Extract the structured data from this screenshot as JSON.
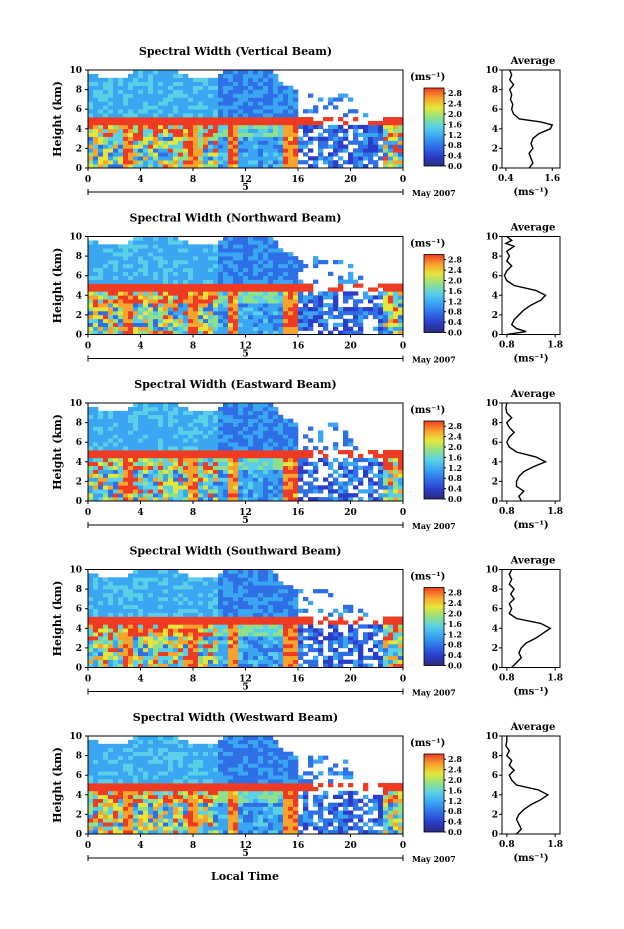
{
  "chart_data": {
    "type": "heatmap",
    "x_label": "Local Time",
    "x_ticks": [
      "0",
      "4",
      "8",
      "12",
      "16",
      "20",
      "0"
    ],
    "x_range": [
      0,
      24
    ],
    "date_label": "5",
    "date_suffix": "May 2007",
    "y_label": "Height (km)",
    "y_ticks": [
      "0",
      "2",
      "4",
      "6",
      "8",
      "10"
    ],
    "y_range": [
      0,
      10
    ],
    "colorbar": {
      "unit": "(ms⁻¹)",
      "ticks": [
        "0.0",
        "0.4",
        "0.8",
        "1.2",
        "1.6",
        "2.0",
        "2.4",
        "2.8"
      ],
      "range": [
        0.0,
        3.0
      ],
      "colors": [
        "#2a2a7a",
        "#2a3cc8",
        "#2f6fe6",
        "#3aa6f2",
        "#5ad0e8",
        "#8fe08a",
        "#e6e63a",
        "#f7a32c",
        "#ef3b23"
      ]
    },
    "avg_title": "Average",
    "avg_unit": "(ms⁻¹)",
    "panels": [
      {
        "title": "Spectral Width (Vertical Beam)",
        "avg_xticks": [
          "0.4",
          "1.6"
        ],
        "avg_xrange": [
          0.3,
          1.8
        ],
        "avg_profile": [
          [
            0,
            1.0
          ],
          [
            0.5,
            1.1
          ],
          [
            1,
            1.05
          ],
          [
            1.5,
            1.0
          ],
          [
            2,
            1.1
          ],
          [
            2.5,
            1.05
          ],
          [
            3,
            1.1
          ],
          [
            3.5,
            1.25
          ],
          [
            4,
            1.55
          ],
          [
            4.4,
            1.6
          ],
          [
            4.7,
            1.3
          ],
          [
            5,
            0.75
          ],
          [
            5.5,
            0.6
          ],
          [
            6,
            0.55
          ],
          [
            6.5,
            0.58
          ],
          [
            7,
            0.52
          ],
          [
            7.5,
            0.55
          ],
          [
            8,
            0.5
          ],
          [
            8.5,
            0.6
          ],
          [
            9,
            0.5
          ],
          [
            9.5,
            0.55
          ],
          [
            10,
            0.5
          ]
        ]
      },
      {
        "title": "Spectral Width (Northward Beam)",
        "avg_xticks": [
          "0.8",
          "1.8"
        ],
        "avg_xrange": [
          0.7,
          1.9
        ],
        "avg_profile": [
          [
            0,
            0.8
          ],
          [
            0.3,
            1.2
          ],
          [
            0.6,
            1.0
          ],
          [
            1,
            0.9
          ],
          [
            1.5,
            0.95
          ],
          [
            2,
            1.05
          ],
          [
            2.5,
            1.15
          ],
          [
            3,
            1.3
          ],
          [
            3.5,
            1.5
          ],
          [
            4,
            1.6
          ],
          [
            4.5,
            1.4
          ],
          [
            5,
            0.95
          ],
          [
            5.5,
            0.8
          ],
          [
            6,
            0.75
          ],
          [
            6.5,
            0.8
          ],
          [
            7,
            0.9
          ],
          [
            7.5,
            0.8
          ],
          [
            8,
            0.85
          ],
          [
            8.5,
            0.8
          ],
          [
            9,
            0.95
          ],
          [
            9.3,
            0.78
          ],
          [
            9.6,
            0.9
          ],
          [
            10,
            0.8
          ]
        ]
      },
      {
        "title": "Spectral Width (Eastward Beam)",
        "avg_xticks": [
          "0.8",
          "1.8"
        ],
        "avg_xrange": [
          0.7,
          1.9
        ],
        "avg_profile": [
          [
            0,
            1.1
          ],
          [
            0.5,
            1.05
          ],
          [
            1,
            1.15
          ],
          [
            1.5,
            1.0
          ],
          [
            2,
            1.0
          ],
          [
            2.5,
            1.05
          ],
          [
            3,
            1.15
          ],
          [
            3.5,
            1.35
          ],
          [
            4,
            1.6
          ],
          [
            4.5,
            1.4
          ],
          [
            5,
            1.0
          ],
          [
            5.5,
            0.85
          ],
          [
            6,
            0.8
          ],
          [
            6.5,
            0.85
          ],
          [
            7,
            0.95
          ],
          [
            7.5,
            0.85
          ],
          [
            8,
            0.8
          ],
          [
            8.5,
            0.9
          ],
          [
            9,
            0.8
          ],
          [
            9.5,
            0.78
          ],
          [
            10,
            0.8
          ]
        ]
      },
      {
        "title": "Spectral Width (Southward Beam)",
        "avg_xticks": [
          "0.8",
          "1.8"
        ],
        "avg_xrange": [
          0.7,
          1.9
        ],
        "avg_profile": [
          [
            0,
            0.9
          ],
          [
            0.5,
            1.0
          ],
          [
            1,
            1.1
          ],
          [
            1.5,
            1.05
          ],
          [
            2,
            1.1
          ],
          [
            2.5,
            1.2
          ],
          [
            3,
            1.4
          ],
          [
            3.5,
            1.55
          ],
          [
            4,
            1.7
          ],
          [
            4.5,
            1.5
          ],
          [
            5,
            1.0
          ],
          [
            5.5,
            0.85
          ],
          [
            6,
            0.9
          ],
          [
            6.5,
            0.85
          ],
          [
            7,
            0.95
          ],
          [
            7.5,
            0.88
          ],
          [
            8,
            0.95
          ],
          [
            8.5,
            0.85
          ],
          [
            9,
            0.9
          ],
          [
            9.5,
            0.85
          ],
          [
            10,
            0.9
          ]
        ]
      },
      {
        "title": "Spectral Width (Westward Beam)",
        "avg_xticks": [
          "0.8",
          "1.8"
        ],
        "avg_xrange": [
          0.7,
          1.9
        ],
        "avg_profile": [
          [
            0,
            1.0
          ],
          [
            0.5,
            1.1
          ],
          [
            1,
            1.05
          ],
          [
            1.5,
            1.0
          ],
          [
            2,
            1.05
          ],
          [
            2.5,
            1.15
          ],
          [
            3,
            1.3
          ],
          [
            3.5,
            1.5
          ],
          [
            4,
            1.65
          ],
          [
            4.5,
            1.45
          ],
          [
            5,
            1.0
          ],
          [
            5.5,
            0.9
          ],
          [
            6,
            0.85
          ],
          [
            6.5,
            0.95
          ],
          [
            7,
            0.85
          ],
          [
            7.5,
            0.9
          ],
          [
            8,
            0.8
          ],
          [
            8.5,
            0.85
          ],
          [
            9,
            0.78
          ],
          [
            9.5,
            0.8
          ],
          [
            10,
            0.8
          ]
        ]
      }
    ]
  }
}
